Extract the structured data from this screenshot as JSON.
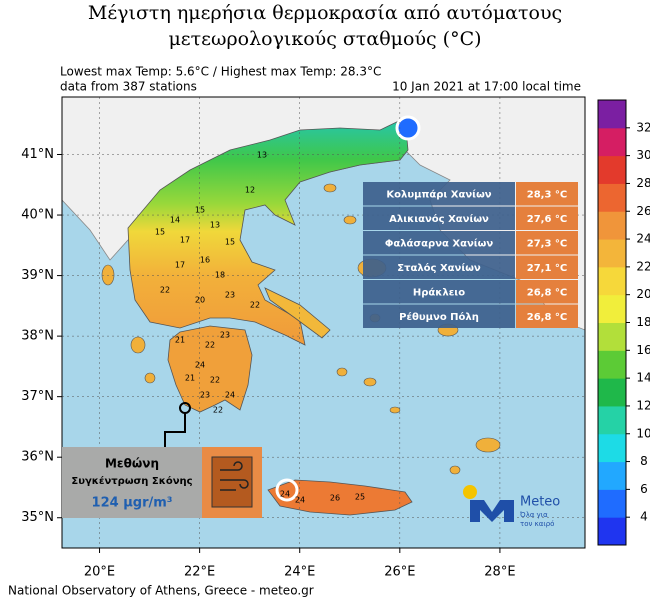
{
  "header": {
    "title_line1": "Μέγιστη ημερήσια θερμοκρασία από αυτόματους",
    "title_line2": "μετεωρολογικούς σταθμούς (°C)",
    "info_line1": "Lowest max Temp: 5.6°C / Highest max Temp: 28.3°C",
    "info_line2": "data from 387 stations",
    "timestamp": "10 Jan 2021 at 17:00 local time"
  },
  "map": {
    "lon_lim": [
      19.25,
      29.7
    ],
    "lat_lim": [
      34.5,
      41.95
    ],
    "lon_ticks": [
      {
        "value": 20,
        "label": "20°E"
      },
      {
        "value": 22,
        "label": "22°E"
      },
      {
        "value": 24,
        "label": "24°E"
      },
      {
        "value": 26,
        "label": "26°E"
      },
      {
        "value": 28,
        "label": "28°E"
      }
    ],
    "lat_ticks": [
      {
        "value": 41,
        "label": "41°N"
      },
      {
        "value": 40,
        "label": "40°N"
      },
      {
        "value": 39,
        "label": "39°N"
      },
      {
        "value": 38,
        "label": "38°N"
      },
      {
        "value": 37,
        "label": "37°N"
      },
      {
        "value": 36,
        "label": "36°N"
      },
      {
        "value": 35,
        "label": "35°N"
      }
    ],
    "station_values": [
      13,
      12,
      15,
      14,
      15,
      17,
      13,
      15,
      16,
      17,
      18,
      22,
      20,
      23,
      22,
      21,
      22,
      23,
      24,
      22,
      21,
      24,
      23,
      22,
      24,
      26,
      25,
      24
    ]
  },
  "stations_table": {
    "rows": [
      [
        "Κολυμπάρι Χανίων",
        "28,3 °C"
      ],
      [
        "Αλικιανός Χανίων",
        "27,6 °C"
      ],
      [
        "Φαλάσαρνα Χανίων",
        "27,3 °C"
      ],
      [
        "Σταλός Χανίων",
        "27,1 °C"
      ],
      [
        "Ηράκλειο",
        "26,8 °C"
      ],
      [
        "Ρέθυμνο Πόλη",
        "26,8 °C"
      ]
    ]
  },
  "dust_box": {
    "station": "Μεθώνη",
    "label": "Συγκέντρωση Σκόνης",
    "value": "124 μgr/m³"
  },
  "logo": {
    "name": "Meteo",
    "slogan_line1": "Όλα για",
    "slogan_line2": "τον καιρό"
  },
  "colorbar": {
    "lim": [
      2,
      34
    ],
    "ticks": [
      4,
      6,
      8,
      10,
      12,
      14,
      16,
      18,
      20,
      22,
      24,
      26,
      28,
      30,
      32
    ],
    "colors": [
      "#1f35f0",
      "#1f6cff",
      "#22a8ff",
      "#1ddbe6",
      "#25d2a6",
      "#1fb84a",
      "#5ccb36",
      "#b2df3a",
      "#f1ee3b",
      "#f6d83a",
      "#f3b53a",
      "#f0953a",
      "#ec6630",
      "#e33a2c",
      "#d51e63",
      "#7b1fa2"
    ]
  },
  "footer": "National Observatory of Athens, Greece - meteo.gr"
}
